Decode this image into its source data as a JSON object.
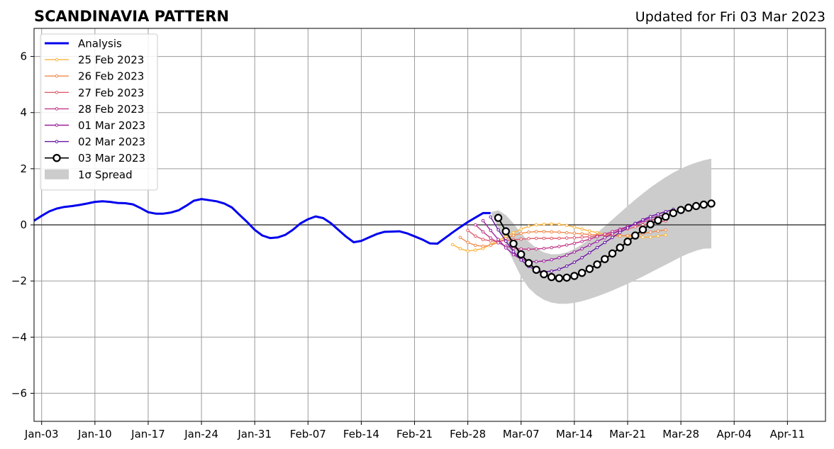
{
  "chart_data": {
    "type": "line",
    "title": "SCANDINAVIA PATTERN",
    "subtitle": "Updated for Fri 03 Mar 2023",
    "xlabel": "",
    "ylabel": "",
    "x_axis": "date",
    "xlim": [
      "2023-01-02",
      "2023-04-16"
    ],
    "ylim": [
      -7,
      7
    ],
    "x_ticks": [
      {
        "date": "2023-01-03",
        "label": "Jan-03"
      },
      {
        "date": "2023-01-10",
        "label": "Jan-10"
      },
      {
        "date": "2023-01-17",
        "label": "Jan-17"
      },
      {
        "date": "2023-01-24",
        "label": "Jan-24"
      },
      {
        "date": "2023-01-31",
        "label": "Jan-31"
      },
      {
        "date": "2023-02-07",
        "label": "Feb-07"
      },
      {
        "date": "2023-02-14",
        "label": "Feb-14"
      },
      {
        "date": "2023-02-21",
        "label": "Feb-21"
      },
      {
        "date": "2023-02-28",
        "label": "Feb-28"
      },
      {
        "date": "2023-03-07",
        "label": "Mar-07"
      },
      {
        "date": "2023-03-14",
        "label": "Mar-14"
      },
      {
        "date": "2023-03-21",
        "label": "Mar-21"
      },
      {
        "date": "2023-03-28",
        "label": "Mar-28"
      },
      {
        "date": "2023-04-04",
        "label": "Apr-04"
      },
      {
        "date": "2023-04-11",
        "label": "Apr-11"
      }
    ],
    "y_ticks": [
      {
        "value": -6,
        "label": "−6"
      },
      {
        "value": -4,
        "label": "−4"
      },
      {
        "value": -2,
        "label": "−2"
      },
      {
        "value": 0,
        "label": "0"
      },
      {
        "value": 2,
        "label": "2"
      },
      {
        "value": 4,
        "label": "4"
      },
      {
        "value": 6,
        "label": "6"
      }
    ],
    "grid": true,
    "legend": "top-left",
    "series": [
      {
        "name": "Analysis",
        "color": "#0000ee",
        "style": "thick",
        "x": [
          "2023-01-02",
          "2023-01-03",
          "2023-01-04",
          "2023-01-05",
          "2023-01-06",
          "2023-01-07",
          "2023-01-08",
          "2023-01-09",
          "2023-01-10",
          "2023-01-11",
          "2023-01-12",
          "2023-01-13",
          "2023-01-14",
          "2023-01-15",
          "2023-01-16",
          "2023-01-17",
          "2023-01-18",
          "2023-01-19",
          "2023-01-20",
          "2023-01-21",
          "2023-01-22",
          "2023-01-23",
          "2023-01-24",
          "2023-01-25",
          "2023-01-26",
          "2023-01-27",
          "2023-01-28",
          "2023-01-29",
          "2023-01-30",
          "2023-01-31",
          "2023-02-01",
          "2023-02-02",
          "2023-02-03",
          "2023-02-04",
          "2023-02-05",
          "2023-02-06",
          "2023-02-07",
          "2023-02-08",
          "2023-02-09",
          "2023-02-10",
          "2023-02-11",
          "2023-02-12",
          "2023-02-13",
          "2023-02-14",
          "2023-02-15",
          "2023-02-16",
          "2023-02-17",
          "2023-02-18",
          "2023-02-19",
          "2023-02-20",
          "2023-02-21",
          "2023-02-22",
          "2023-02-23",
          "2023-02-24",
          "2023-02-25",
          "2023-02-26",
          "2023-02-27",
          "2023-02-28",
          "2023-03-01",
          "2023-03-02",
          "2023-03-03"
        ],
        "values": [
          0.15,
          0.32,
          0.48,
          0.58,
          0.64,
          0.67,
          0.71,
          0.76,
          0.82,
          0.84,
          0.82,
          0.78,
          0.77,
          0.73,
          0.6,
          0.45,
          0.4,
          0.4,
          0.44,
          0.52,
          0.68,
          0.86,
          0.92,
          0.88,
          0.84,
          0.76,
          0.62,
          0.36,
          0.1,
          -0.18,
          -0.38,
          -0.47,
          -0.45,
          -0.36,
          -0.18,
          0.05,
          0.2,
          0.3,
          0.24,
          0.06,
          -0.18,
          -0.42,
          -0.62,
          -0.57,
          -0.45,
          -0.33,
          -0.25,
          -0.24,
          -0.23,
          -0.3,
          -0.41,
          -0.52,
          -0.66,
          -0.67,
          -0.47,
          -0.27,
          -0.08,
          0.1,
          0.26,
          0.42,
          0.42
        ]
      },
      {
        "name": "25 Feb 2023",
        "color": "#fbb33b",
        "style": "small-dot",
        "start": "2023-02-26",
        "values": [
          -0.7,
          -0.85,
          -0.93,
          -0.9,
          -0.84,
          -0.7,
          -0.55,
          -0.42,
          -0.28,
          -0.15,
          -0.05,
          0.0,
          0.02,
          0.03,
          0.02,
          -0.02,
          -0.08,
          -0.15,
          -0.22,
          -0.28,
          -0.33,
          -0.36,
          -0.38,
          -0.4,
          -0.42,
          -0.44,
          -0.44,
          -0.4,
          -0.36
        ]
      },
      {
        "name": "26 Feb 2023",
        "color": "#f0894a",
        "style": "small-dot",
        "start": "2023-02-27",
        "values": [
          -0.45,
          -0.63,
          -0.73,
          -0.76,
          -0.73,
          -0.62,
          -0.49,
          -0.38,
          -0.3,
          -0.26,
          -0.24,
          -0.24,
          -0.25,
          -0.26,
          -0.28,
          -0.3,
          -0.32,
          -0.34,
          -0.36,
          -0.38,
          -0.4,
          -0.4,
          -0.38,
          -0.35,
          -0.31,
          -0.26,
          -0.22,
          -0.18
        ]
      },
      {
        "name": "27 Feb 2023",
        "color": "#e05d6f",
        "style": "small-dot",
        "start": "2023-02-28",
        "values": [
          -0.2,
          -0.4,
          -0.52,
          -0.57,
          -0.58,
          -0.56,
          -0.53,
          -0.51,
          -0.49,
          -0.48,
          -0.48,
          -0.48,
          -0.48,
          -0.47,
          -0.46,
          -0.44,
          -0.42,
          -0.39,
          -0.36,
          -0.3,
          -0.23,
          -0.15,
          -0.07,
          0.0,
          0.05,
          0.1,
          0.14
        ]
      },
      {
        "name": "28 Feb 2023",
        "color": "#c2388b",
        "style": "small-dot",
        "start": "2023-03-01",
        "values": [
          0.0,
          -0.25,
          -0.47,
          -0.64,
          -0.76,
          -0.83,
          -0.86,
          -0.87,
          -0.86,
          -0.84,
          -0.81,
          -0.77,
          -0.72,
          -0.66,
          -0.59,
          -0.51,
          -0.42,
          -0.33,
          -0.24,
          -0.15,
          -0.06,
          0.02,
          0.1,
          0.17,
          0.22,
          0.26
        ]
      },
      {
        "name": "01 Mar 2023",
        "color": "#9b1f9f",
        "style": "small-dot",
        "start": "2023-03-02",
        "values": [
          0.15,
          -0.2,
          -0.52,
          -0.82,
          -1.06,
          -1.22,
          -1.3,
          -1.31,
          -1.29,
          -1.24,
          -1.17,
          -1.08,
          -0.97,
          -0.85,
          -0.72,
          -0.59,
          -0.46,
          -0.32,
          -0.19,
          -0.06,
          0.05,
          0.15,
          0.24,
          0.31,
          0.37
        ]
      },
      {
        "name": "02 Mar 2023",
        "color": "#6613a4",
        "style": "small-dot",
        "start": "2023-03-03",
        "values": [
          0.28,
          -0.18,
          -0.58,
          -0.95,
          -1.25,
          -1.48,
          -1.62,
          -1.67,
          -1.65,
          -1.58,
          -1.47,
          -1.33,
          -1.17,
          -0.99,
          -0.81,
          -0.63,
          -0.45,
          -0.27,
          -0.11,
          0.05,
          0.18,
          0.3,
          0.39,
          0.47,
          0.55
        ]
      },
      {
        "name": "03 Mar 2023",
        "color": "#000000",
        "style": "big-circle",
        "start": "2023-03-04",
        "values": [
          0.25,
          -0.23,
          -0.67,
          -1.05,
          -1.36,
          -1.6,
          -1.76,
          -1.86,
          -1.9,
          -1.88,
          -1.82,
          -1.71,
          -1.57,
          -1.41,
          -1.22,
          -1.02,
          -0.81,
          -0.6,
          -0.38,
          -0.17,
          0.02,
          0.16,
          0.29,
          0.42,
          0.53,
          0.61,
          0.67,
          0.72,
          0.76
        ]
      }
    ],
    "spread": {
      "name": "1σ Spread",
      "color": "#cccccc",
      "start": "2023-03-03",
      "end": "2023-04-01",
      "lower": [
        0.45,
        -0.1,
        -0.7,
        -1.3,
        -1.85,
        -2.25,
        -2.5,
        -2.67,
        -2.77,
        -2.81,
        -2.81,
        -2.78,
        -2.72,
        -2.64,
        -2.55,
        -2.45,
        -2.34,
        -2.22,
        -2.1,
        -1.97,
        -1.84,
        -1.7,
        -1.56,
        -1.42,
        -1.28,
        -1.14,
        -1.02,
        -0.92,
        -0.85,
        -0.84
      ],
      "upper": [
        0.45,
        0.52,
        0.35,
        0.05,
        -0.3,
        -0.6,
        -0.83,
        -0.98,
        -1.05,
        -1.04,
        -0.98,
        -0.86,
        -0.7,
        -0.5,
        -0.28,
        -0.05,
        0.19,
        0.43,
        0.67,
        0.9,
        1.12,
        1.33,
        1.52,
        1.7,
        1.86,
        2.0,
        2.12,
        2.22,
        2.3,
        2.36
      ]
    }
  }
}
